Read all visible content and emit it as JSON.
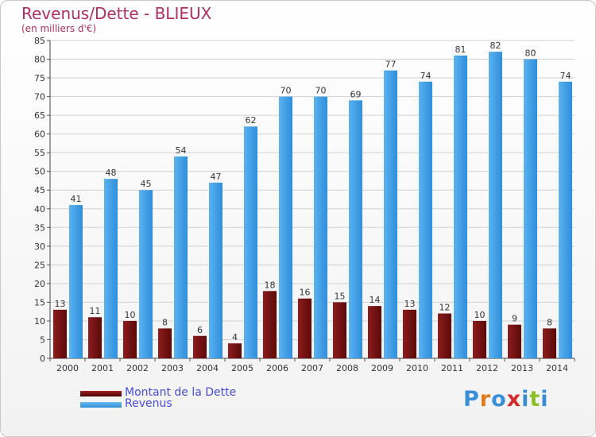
{
  "title": "Revenus/Dette - BLIEUX",
  "subtitle": "(en milliers d'€)",
  "colors": {
    "title": "#b0305a",
    "dette": "#7a1414",
    "revenus": "#3d9ee6",
    "grid": "#d2d2d2",
    "legend_text": "#4a4ae0"
  },
  "logo": {
    "text": "Proxiti",
    "letter_colors": [
      "#3a8fd8",
      "#e07b1a",
      "#3a8fd8",
      "#d42a2a",
      "#3a8fd8",
      "#8cbf26",
      "#3a8fd8"
    ]
  },
  "chart_data": {
    "type": "bar",
    "categories": [
      "2000",
      "2001",
      "2002",
      "2003",
      "2004",
      "2005",
      "2006",
      "2007",
      "2008",
      "2009",
      "2010",
      "2011",
      "2012",
      "2013",
      "2014"
    ],
    "series": [
      {
        "name": "Montant de la Dette",
        "values": [
          13,
          11,
          10,
          8,
          6,
          4,
          18,
          16,
          15,
          14,
          13,
          12,
          10,
          9,
          8
        ]
      },
      {
        "name": "Revenus",
        "values": [
          41,
          48,
          45,
          54,
          47,
          62,
          70,
          70,
          69,
          77,
          74,
          81,
          82,
          80,
          74
        ]
      }
    ],
    "ylim": [
      0,
      85
    ],
    "ytick_step": 5,
    "grid": true,
    "legend_position": "bottom-left"
  }
}
